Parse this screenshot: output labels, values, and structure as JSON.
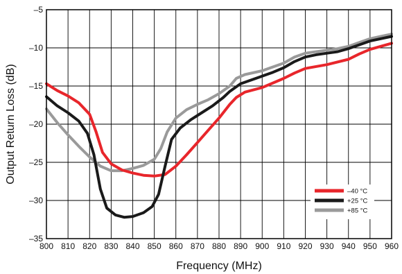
{
  "chart_data": {
    "type": "line",
    "title": "",
    "xlabel": "Frequency (MHz)",
    "ylabel": "Output Return Loss (dB)",
    "xlim": [
      800,
      960
    ],
    "ylim": [
      -35,
      -5
    ],
    "xticks": [
      800,
      810,
      820,
      830,
      840,
      850,
      860,
      870,
      880,
      890,
      900,
      910,
      920,
      930,
      940,
      950,
      960
    ],
    "yticks": [
      -5,
      -10,
      -15,
      -20,
      -25,
      -30,
      -35
    ],
    "x_tick_labels": [
      "800",
      "810",
      "820",
      "830",
      "840",
      "850",
      "860",
      "870",
      "880",
      "890",
      "900",
      "910",
      "920",
      "930",
      "940",
      "950",
      "960"
    ],
    "y_tick_labels": [
      "–5",
      "–10",
      "–15",
      "–20",
      "–25",
      "–30",
      "–35"
    ],
    "grid": true,
    "legend_position": "lower-right",
    "series": [
      {
        "name": "–40 °C",
        "color": "#e8262b",
        "points": [
          [
            800,
            -14.7
          ],
          [
            805,
            -15.6
          ],
          [
            810,
            -16.3
          ],
          [
            815,
            -17.2
          ],
          [
            820,
            -18.7
          ],
          [
            823,
            -21.0
          ],
          [
            826,
            -23.7
          ],
          [
            830,
            -25.2
          ],
          [
            835,
            -26.0
          ],
          [
            840,
            -26.4
          ],
          [
            845,
            -26.7
          ],
          [
            850,
            -26.8
          ],
          [
            855,
            -26.6
          ],
          [
            860,
            -25.5
          ],
          [
            865,
            -24.0
          ],
          [
            870,
            -22.4
          ],
          [
            875,
            -20.8
          ],
          [
            880,
            -19.2
          ],
          [
            885,
            -17.4
          ],
          [
            888,
            -16.5
          ],
          [
            892,
            -15.8
          ],
          [
            900,
            -15.2
          ],
          [
            910,
            -14.0
          ],
          [
            915,
            -13.3
          ],
          [
            920,
            -12.7
          ],
          [
            930,
            -12.2
          ],
          [
            940,
            -11.5
          ],
          [
            945,
            -10.8
          ],
          [
            950,
            -10.2
          ],
          [
            955,
            -9.8
          ],
          [
            960,
            -9.4
          ]
        ]
      },
      {
        "name": "+25 °C",
        "color": "#1a1a1a",
        "points": [
          [
            800,
            -16.4
          ],
          [
            805,
            -17.6
          ],
          [
            810,
            -18.5
          ],
          [
            815,
            -19.6
          ],
          [
            819,
            -21.2
          ],
          [
            822,
            -24.0
          ],
          [
            825,
            -28.5
          ],
          [
            828,
            -31.0
          ],
          [
            832,
            -31.9
          ],
          [
            836,
            -32.2
          ],
          [
            840,
            -32.1
          ],
          [
            845,
            -31.6
          ],
          [
            849,
            -30.8
          ],
          [
            852,
            -29.2
          ],
          [
            855,
            -25.5
          ],
          [
            858,
            -22.0
          ],
          [
            862,
            -20.5
          ],
          [
            867,
            -19.4
          ],
          [
            872,
            -18.5
          ],
          [
            877,
            -17.6
          ],
          [
            882,
            -16.5
          ],
          [
            885,
            -15.7
          ],
          [
            890,
            -14.7
          ],
          [
            895,
            -14.2
          ],
          [
            900,
            -13.7
          ],
          [
            905,
            -13.2
          ],
          [
            910,
            -12.6
          ],
          [
            915,
            -11.8
          ],
          [
            920,
            -11.2
          ],
          [
            925,
            -10.9
          ],
          [
            930,
            -10.7
          ],
          [
            935,
            -10.5
          ],
          [
            940,
            -10.1
          ],
          [
            945,
            -9.6
          ],
          [
            950,
            -9.1
          ],
          [
            955,
            -8.8
          ],
          [
            960,
            -8.5
          ]
        ]
      },
      {
        "name": "+85 °C",
        "color": "#9a9a9a",
        "points": [
          [
            800,
            -18.0
          ],
          [
            805,
            -19.8
          ],
          [
            810,
            -21.4
          ],
          [
            815,
            -22.9
          ],
          [
            820,
            -24.3
          ],
          [
            825,
            -25.5
          ],
          [
            830,
            -26.1
          ],
          [
            835,
            -26.1
          ],
          [
            840,
            -25.8
          ],
          [
            845,
            -25.4
          ],
          [
            850,
            -24.6
          ],
          [
            853,
            -23.2
          ],
          [
            856,
            -21.0
          ],
          [
            860,
            -19.2
          ],
          [
            865,
            -18.1
          ],
          [
            870,
            -17.4
          ],
          [
            875,
            -16.8
          ],
          [
            880,
            -16.0
          ],
          [
            885,
            -15.0
          ],
          [
            888,
            -14.0
          ],
          [
            892,
            -13.5
          ],
          [
            900,
            -13.0
          ],
          [
            910,
            -12.0
          ],
          [
            915,
            -11.2
          ],
          [
            920,
            -10.7
          ],
          [
            930,
            -10.3
          ],
          [
            935,
            -10.1
          ],
          [
            940,
            -9.8
          ],
          [
            945,
            -9.3
          ],
          [
            950,
            -8.8
          ],
          [
            955,
            -8.5
          ],
          [
            960,
            -8.2
          ]
        ]
      }
    ]
  }
}
